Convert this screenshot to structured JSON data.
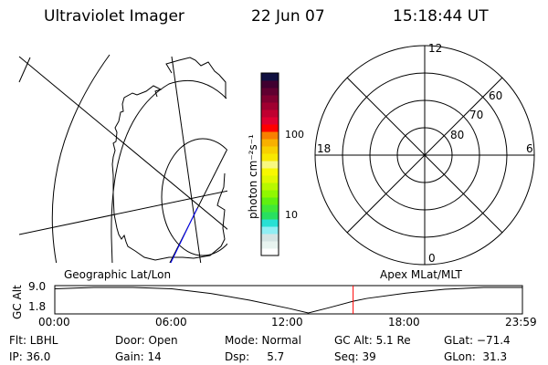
{
  "header": {
    "instrument": "Ultraviolet Imager",
    "date": "22 Jun 07",
    "time": "15:18:44 UT"
  },
  "left_map": {
    "label": "Geographic Lat/Lon"
  },
  "right_map": {
    "label": "Apex MLat/MLT",
    "mlt_labels": [
      "12",
      "6",
      "0",
      "18"
    ],
    "lat_labels": [
      "60",
      "70",
      "80"
    ]
  },
  "colorbar": {
    "unit": "photon cm⁻²s⁻¹",
    "tick_labels": [
      "100",
      "10"
    ],
    "scale": "log",
    "colors": [
      "#ffffff",
      "#e8f4f0",
      "#d4e4e4",
      "#90eef4",
      "#28e0d4",
      "#28e060",
      "#40e838",
      "#60f010",
      "#90f800",
      "#b8f800",
      "#e0f800",
      "#f8f800",
      "#f8f880",
      "#f8e800",
      "#f8d000",
      "#f8b000",
      "#f88000",
      "#ff0000",
      "#e00030",
      "#c00030",
      "#a00030",
      "#800030",
      "#600030",
      "#400030",
      "#101040"
    ]
  },
  "chart_data": {
    "type": "line",
    "ylabel": "GC Alt",
    "y_tick_labels": [
      "9.0",
      "1.8"
    ],
    "ylim": [
      1.8,
      9.0
    ],
    "x_tick_labels": [
      "00:00",
      "06:00",
      "12:00",
      "18:00",
      "23:59"
    ],
    "xlim": [
      "00:00",
      "23:59"
    ],
    "x": [
      "00:00",
      "02:00",
      "04:00",
      "06:00",
      "08:00",
      "10:00",
      "12:00",
      "13:00",
      "14:00",
      "15:18",
      "16:00",
      "18:00",
      "20:00",
      "22:00",
      "23:59"
    ],
    "values": [
      8.6,
      9.0,
      9.0,
      8.6,
      7.3,
      5.4,
      3.1,
      1.8,
      3.2,
      5.1,
      5.9,
      7.4,
      8.5,
      9.0,
      9.0
    ],
    "current_time_marker": "15:18",
    "marker_color": "#ff0000"
  },
  "footer": {
    "row1": [
      "Flt: LBHL",
      "Door: Open",
      "Mode: Normal",
      "GC Alt: 5.1 Re",
      "GLat: −71.4"
    ],
    "row2": [
      "IP: 36.0",
      "Gain: 14",
      "Dsp:     5.7",
      "Seq: 39",
      "GLon:  31.3"
    ]
  }
}
